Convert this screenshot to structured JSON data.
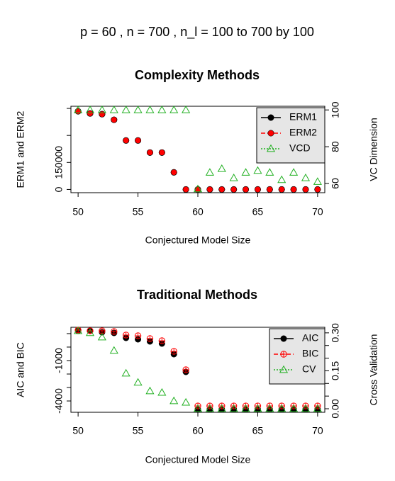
{
  "title": "p =  60 ,  n =  700 , n_l =  100 to 700 by 100",
  "chart_data": [
    {
      "type": "scatter",
      "title": "Complexity Methods",
      "xlabel": "Conjectured Model Size",
      "ylabel": "ERM1 and ERM2",
      "y2label": "VC Dimension",
      "x": [
        50,
        51,
        52,
        53,
        54,
        55,
        56,
        57,
        58,
        59,
        60,
        61,
        62,
        63,
        64,
        65,
        66,
        67,
        68,
        69,
        70
      ],
      "xlim": [
        49.4,
        70.6
      ],
      "xticks": [
        50,
        55,
        60,
        65,
        70
      ],
      "ylim": [
        -18000,
        462000
      ],
      "yticks": [
        0,
        150000,
        {
          "value": 300000,
          "label": null
        },
        {
          "value": 450000,
          "label": null
        }
      ],
      "y2lim": [
        55,
        102
      ],
      "y2ticks": [
        60,
        80,
        100
      ],
      "legend": "topright",
      "legend_text_color": "#22a022",
      "series": [
        {
          "name": "ERM1",
          "color": "#000000",
          "marker": "circle-filled",
          "line": "solid",
          "values": [
            434000,
            422000,
            418000,
            387000,
            272000,
            272000,
            205000,
            205000,
            95000,
            0,
            0,
            0,
            0,
            0,
            0,
            0,
            0,
            0,
            0,
            0,
            0
          ]
        },
        {
          "name": "ERM2",
          "color": "#ff0000",
          "marker": "circle-filled",
          "line": "dashed",
          "values": [
            434000,
            422000,
            418000,
            387000,
            272000,
            272000,
            205000,
            205000,
            95000,
            0,
            0,
            0,
            0,
            0,
            0,
            0,
            0,
            0,
            0,
            0,
            0
          ]
        },
        {
          "name": "VCD",
          "color": "#22b022",
          "marker": "triangle-open",
          "line": "dotted",
          "axis": "y2",
          "values": [
            100,
            100,
            100,
            100,
            100,
            100,
            100,
            100,
            100,
            100,
            57,
            66,
            68,
            63,
            66,
            67,
            66,
            62,
            66,
            63,
            61
          ]
        }
      ]
    },
    {
      "type": "scatter",
      "title": "Traditional Methods",
      "xlabel": "Conjectured Model Size",
      "ylabel": "AIC and BIC",
      "y2label": "Cross Validation",
      "x": [
        50,
        51,
        52,
        53,
        54,
        55,
        56,
        57,
        58,
        59,
        60,
        61,
        62,
        63,
        64,
        65,
        66,
        67,
        68,
        69,
        70
      ],
      "xlim": [
        49.4,
        70.6
      ],
      "xticks": [
        50,
        55,
        60,
        65,
        70
      ],
      "ylim": [
        -4840,
        1470
      ],
      "yticks": [
        {
          "value": 1000,
          "label": null
        },
        {
          "value": 0,
          "label": null
        },
        -1000,
        {
          "value": -2000,
          "label": null
        },
        {
          "value": -3000,
          "label": null
        },
        -4000
      ],
      "y2lim": [
        -0.014,
        0.322
      ],
      "y2ticks": [
        {
          "value": 0,
          "label": "0.00"
        },
        {
          "value": 0.05,
          "label": null
        },
        {
          "value": 0.1,
          "label": null
        },
        0.15,
        {
          "value": 0.2,
          "label": null
        },
        {
          "value": 0.25,
          "label": null
        },
        {
          "value": 0.3,
          "label": "0.30"
        }
      ],
      "legend": "topright",
      "legend_text_color": "#22a022",
      "series": [
        {
          "name": "AIC",
          "color": "#000000",
          "marker": "circle-filled",
          "line": "solid",
          "values": [
            1210,
            1210,
            1105,
            1050,
            684,
            579,
            421,
            263,
            -526,
            -1842,
            -4630,
            -4630,
            -4630,
            -4630,
            -4630,
            -4630,
            -4630,
            -4630,
            -4630,
            -4630,
            -4630
          ]
        },
        {
          "name": "BIC",
          "color": "#ff0000",
          "marker": "circle-plus",
          "line": "dashed",
          "values": [
            1263,
            1210,
            1210,
            1158,
            895,
            842,
            632,
            474,
            -316,
            -1684,
            -4370,
            -4370,
            -4370,
            -4370,
            -4370,
            -4370,
            -4370,
            -4370,
            -4370,
            -4370,
            -4370
          ]
        },
        {
          "name": "CV",
          "color": "#22b022",
          "marker": "triangle-open",
          "line": "dotted",
          "axis": "y2",
          "values": [
            0.308,
            0.3,
            0.283,
            0.23,
            0.14,
            0.104,
            0.07,
            0.064,
            0.031,
            0.025,
            0,
            0,
            0,
            0,
            0,
            0,
            0,
            0,
            0,
            0,
            0
          ]
        }
      ]
    }
  ]
}
